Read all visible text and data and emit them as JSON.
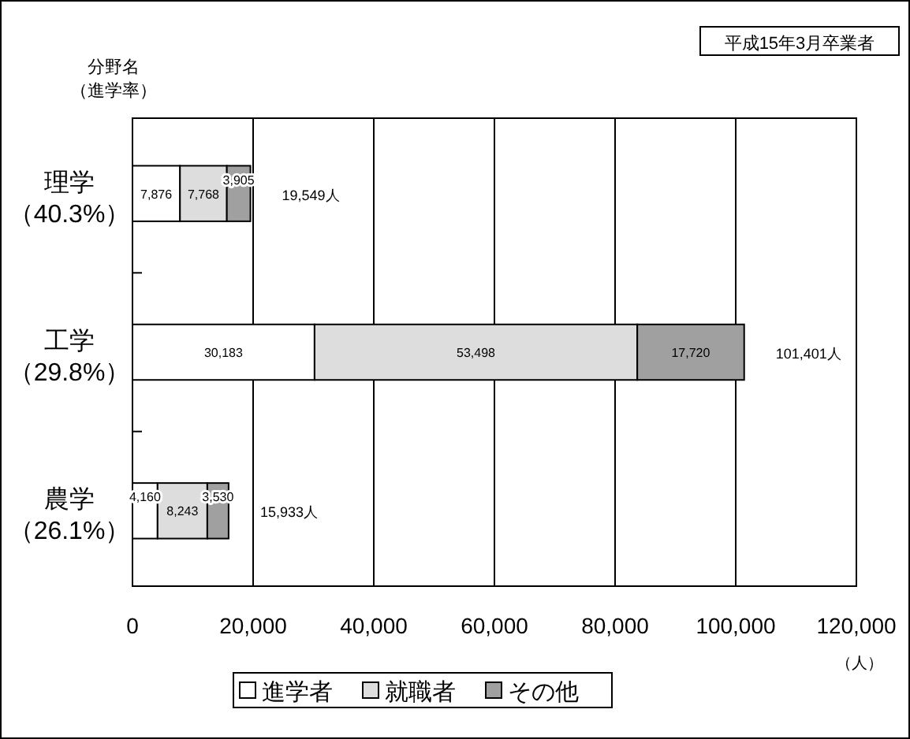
{
  "chart_data": {
    "type": "bar",
    "orientation": "horizontal",
    "stacked": true,
    "categories": [
      "理学（40.3%）",
      "工学（29.8%）",
      "農学（26.1%）"
    ],
    "series": [
      {
        "name": "進学者",
        "color": "#ffffff",
        "values": [
          7876,
          30183,
          4160
        ],
        "value_labels": [
          "7,876",
          "30,183",
          "4,160"
        ]
      },
      {
        "name": "就職者",
        "color": "#dddddd",
        "values": [
          7768,
          53498,
          8243
        ],
        "value_labels": [
          "7,768",
          "53,498",
          "8,243"
        ]
      },
      {
        "name": "その他",
        "color": "#a0a0a0",
        "values": [
          3905,
          17720,
          3530
        ],
        "value_labels": [
          "3,905",
          "17,720",
          "3,530"
        ]
      }
    ],
    "totals": [
      "19,549人",
      "101,401人",
      "15,933人"
    ],
    "xlim": [
      0,
      120000
    ],
    "xticks": [
      {
        "value": 0,
        "label": "0"
      },
      {
        "value": 20000,
        "label": "20,000"
      },
      {
        "value": 40000,
        "label": "40,000"
      },
      {
        "value": 60000,
        "label": "60,000"
      },
      {
        "value": 80000,
        "label": "80,000"
      },
      {
        "value": 100000,
        "label": "100,000"
      },
      {
        "value": 120000,
        "label": "120,000"
      }
    ],
    "xlabel": "（人）",
    "ylabel": "分野名（進学率）",
    "annotations": [
      "平成15年3月卒業者"
    ],
    "grid": "x",
    "legend": "bottom"
  }
}
